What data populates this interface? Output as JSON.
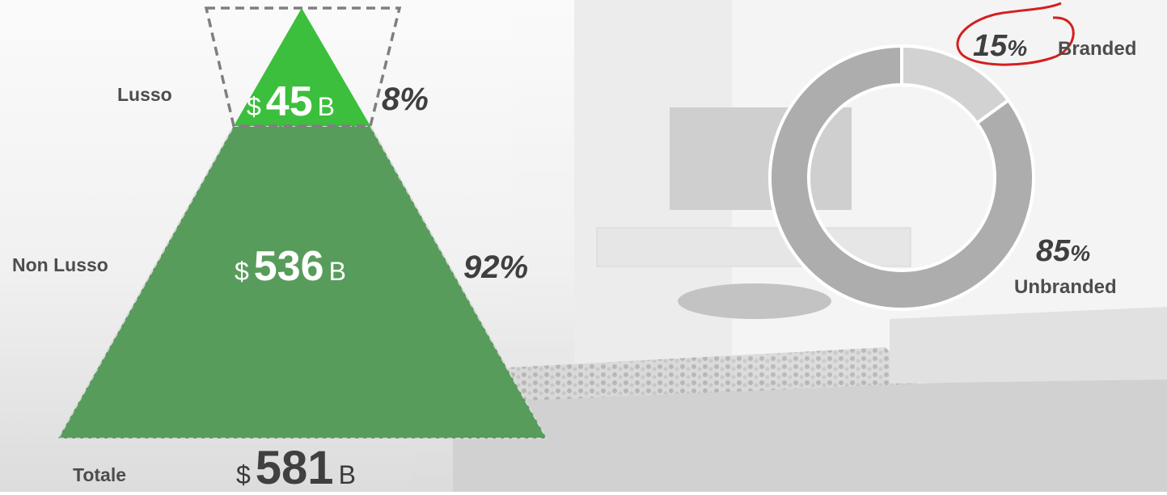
{
  "chart_data": [
    {
      "type": "pyramid",
      "title": "",
      "levels": [
        {
          "label": "Lusso",
          "currency": "$",
          "value": 45,
          "unit": "B",
          "share": "8%"
        },
        {
          "label": "Non Lusso",
          "currency": "$",
          "value": 536,
          "unit": "B",
          "share": "92%"
        }
      ],
      "total": {
        "label": "Totale",
        "currency": "$",
        "value": 581,
        "unit": "B"
      }
    },
    {
      "type": "pie",
      "title": "",
      "slices": [
        {
          "name": "Branded",
          "value": 15,
          "num": "15",
          "sign": "%"
        },
        {
          "name": "Unbranded",
          "value": 85,
          "num": "85",
          "sign": "%"
        }
      ]
    }
  ],
  "colors": {
    "lusso_fill": "#3cbf3c",
    "non_lusso_fill": "#589c5c",
    "branded_slice": "#d2d2d2",
    "unbranded_slice": "#adadad",
    "highlight_circle": "#d41f1f",
    "dash_outline": "#7f7f7f"
  }
}
